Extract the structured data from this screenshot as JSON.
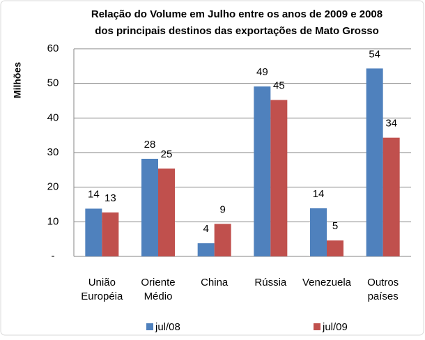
{
  "chart_data": {
    "type": "bar",
    "title": [
      "Relação do Volume em Julho entre os anos de 2009 e 2008",
      "dos principais destinos das exportações de Mato Grosso"
    ],
    "y_label": "Milhões",
    "categories": [
      "União Européia",
      "Oriente Médio",
      "China",
      "Rússia",
      "Venezuela",
      "Outros países"
    ],
    "series": [
      {
        "name": "jul/08",
        "color": "#4f81bd",
        "values": [
          13.8,
          28.2,
          3.8,
          49.1,
          13.9,
          54.3
        ],
        "value_labels": [
          "14",
          "28",
          "4",
          "49",
          "14",
          "54"
        ]
      },
      {
        "name": "jul/09",
        "color": "#c0504d",
        "values": [
          12.7,
          25.4,
          9.4,
          45.2,
          4.6,
          34.3
        ],
        "value_labels": [
          "13",
          "25",
          "9",
          "45",
          "5",
          "34"
        ]
      }
    ],
    "ylim": [
      0,
      60
    ],
    "yticks": [
      {
        "value": 0,
        "label": "-"
      },
      10,
      20,
      30,
      40,
      50,
      60
    ],
    "grid": true,
    "legend": "bottom"
  }
}
